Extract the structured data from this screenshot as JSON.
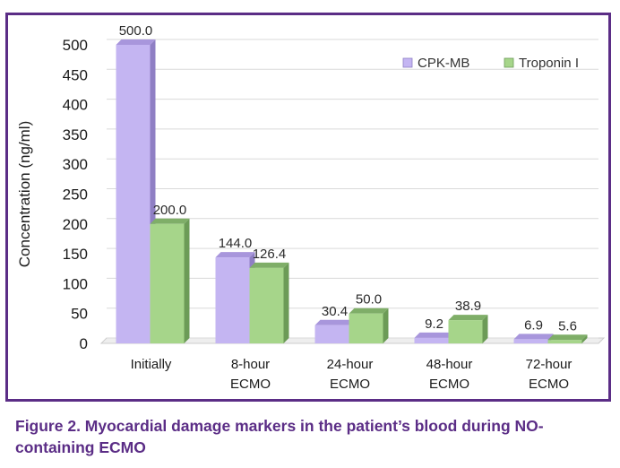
{
  "caption": "Figure 2. Myocardial damage markers in the patient’s blood during NO-containing ECMO",
  "chart_data": {
    "type": "bar",
    "style": "3d-clustered",
    "ylabel": "Concentration (ng/ml)",
    "xlabel": "",
    "ylim": [
      0,
      500
    ],
    "yticks": [
      0,
      50,
      100,
      150,
      200,
      250,
      300,
      350,
      400,
      450,
      500
    ],
    "grid": true,
    "legend_position": "top-right",
    "categories": [
      [
        "Initially"
      ],
      [
        "8-hour",
        "ECMO"
      ],
      [
        "24-hour",
        "ECMO"
      ],
      [
        "48-hour",
        "ECMO"
      ],
      [
        "72-hour",
        "ECMO"
      ]
    ],
    "series": [
      {
        "name": "CPK-MB",
        "values": [
          500.0,
          144.0,
          30.4,
          9.2,
          6.9
        ],
        "labels": [
          "500.0",
          "144.0",
          "30.4",
          "9.2",
          "6.9"
        ],
        "color": "#c4b5f2",
        "side_color": "#8f7fc4",
        "top_color": "#a896dc"
      },
      {
        "name": "Troponin I",
        "values": [
          200.0,
          126.4,
          50.0,
          38.9,
          5.6
        ],
        "labels": [
          "200.0",
          "126.4",
          "50.0",
          "38.9",
          "5.6"
        ],
        "color": "#a6d58a",
        "side_color": "#6c9b57",
        "top_color": "#7fae68"
      }
    ],
    "frame_color": "#5b2d86"
  }
}
